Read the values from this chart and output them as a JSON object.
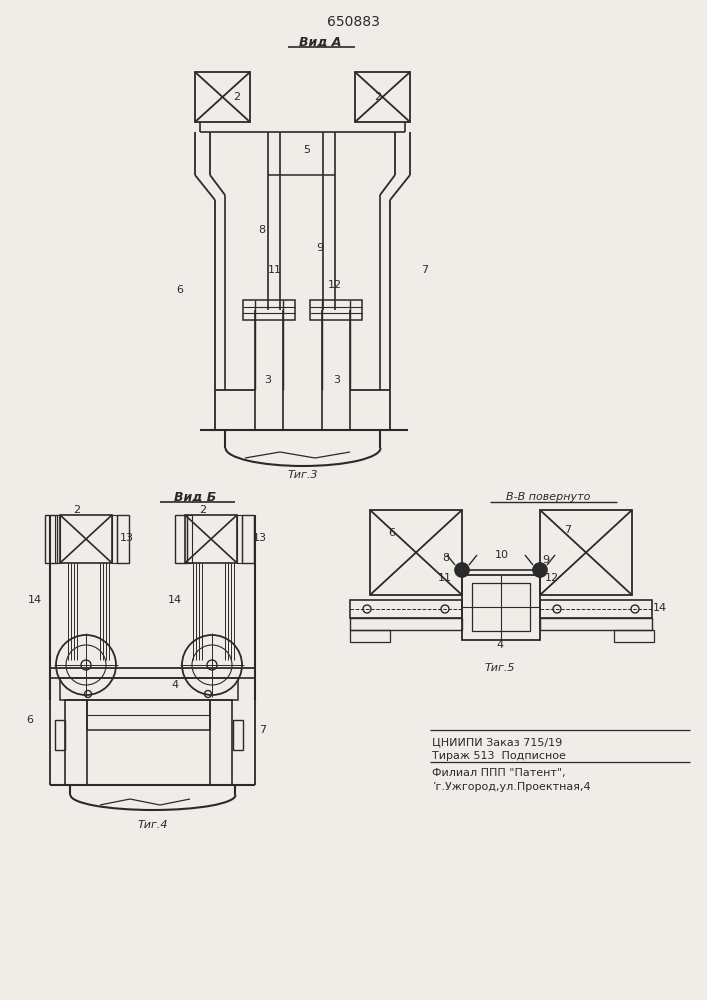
{
  "title": "650883",
  "bg_color": "#f0ede8",
  "line_color": "#2a2a2a",
  "fig3_label": "Τиг.3",
  "fig4_label": "Τиг.4",
  "fig5_label": "Τиг.5",
  "vid_a_label": "Вид А",
  "vid_b_label": "Вид Б",
  "vv_label": "В-В повернуто",
  "footer_line1": "ЦНИИПИ Заказ 715/19",
  "footer_line2": "Тираж 513  Подписное",
  "footer_line3": "Филиал ППП \"Патент\",",
  "footer_line4": "’г.Ужгород,ул.Проектная,4"
}
